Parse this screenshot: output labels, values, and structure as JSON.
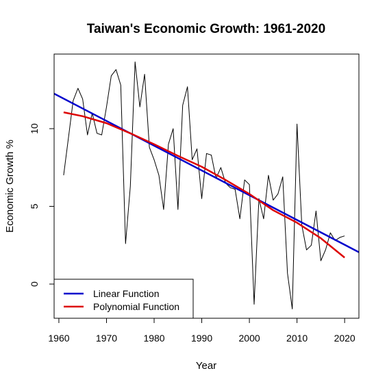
{
  "chart_data": {
    "type": "line",
    "title": "Taiwan's Economic Growth: 1961-2020",
    "xlabel": "Year",
    "ylabel": "Economic Growth %",
    "xlim": [
      1959,
      2023
    ],
    "ylim": [
      -2.2,
      14.8
    ],
    "x_ticks": [
      1960,
      1970,
      1980,
      1990,
      2000,
      2010,
      2020
    ],
    "y_ticks": [
      0,
      5,
      10
    ],
    "legend_position": "bottom-left",
    "series": [
      {
        "color": "#000000",
        "x": [
          1961,
          1962,
          1963,
          1964,
          1965,
          1966,
          1967,
          1968,
          1969,
          1970,
          1971,
          1972,
          1973,
          1974,
          1975,
          1976,
          1977,
          1978,
          1979,
          1980,
          1981,
          1982,
          1983,
          1984,
          1985,
          1986,
          1987,
          1988,
          1989,
          1990,
          1991,
          1992,
          1993,
          1994,
          1995,
          1996,
          1997,
          1998,
          1999,
          2000,
          2001,
          2002,
          2003,
          2004,
          2005,
          2006,
          2007,
          2008,
          2009,
          2010,
          2011,
          2012,
          2013,
          2014,
          2015,
          2016,
          2017,
          2018,
          2019,
          2020
        ],
        "y": [
          7.0,
          9.4,
          11.8,
          12.6,
          11.9,
          9.6,
          11.0,
          9.7,
          9.6,
          11.4,
          13.4,
          13.8,
          12.8,
          2.6,
          6.3,
          14.3,
          11.4,
          13.5,
          8.8,
          8.0,
          7.0,
          4.8,
          9.0,
          10.0,
          4.8,
          11.5,
          12.7,
          8.0,
          8.7,
          5.5,
          8.4,
          8.3,
          6.8,
          7.5,
          6.5,
          6.2,
          6.1,
          4.2,
          6.7,
          6.4,
          -1.3,
          5.5,
          4.2,
          7.0,
          5.4,
          5.8,
          6.9,
          0.7,
          -1.6,
          10.3,
          3.8,
          2.2,
          2.5,
          4.7,
          1.5,
          2.2,
          3.3,
          2.8,
          3.0,
          3.1
        ]
      },
      {
        "name": "Linear Function",
        "color": "#0000cc",
        "x": [
          1959,
          2023
        ],
        "y": [
          12.25,
          2.05
        ]
      },
      {
        "name": "Polynomial Function",
        "color": "#dd0000",
        "x": [
          1961,
          1965,
          1970,
          1975,
          1980,
          1985,
          1990,
          1995,
          2000,
          2005,
          2010,
          2015,
          2020
        ],
        "y": [
          11.05,
          10.8,
          10.35,
          9.7,
          9.0,
          8.25,
          7.55,
          6.7,
          5.8,
          4.75,
          3.95,
          2.95,
          1.7
        ]
      }
    ]
  }
}
